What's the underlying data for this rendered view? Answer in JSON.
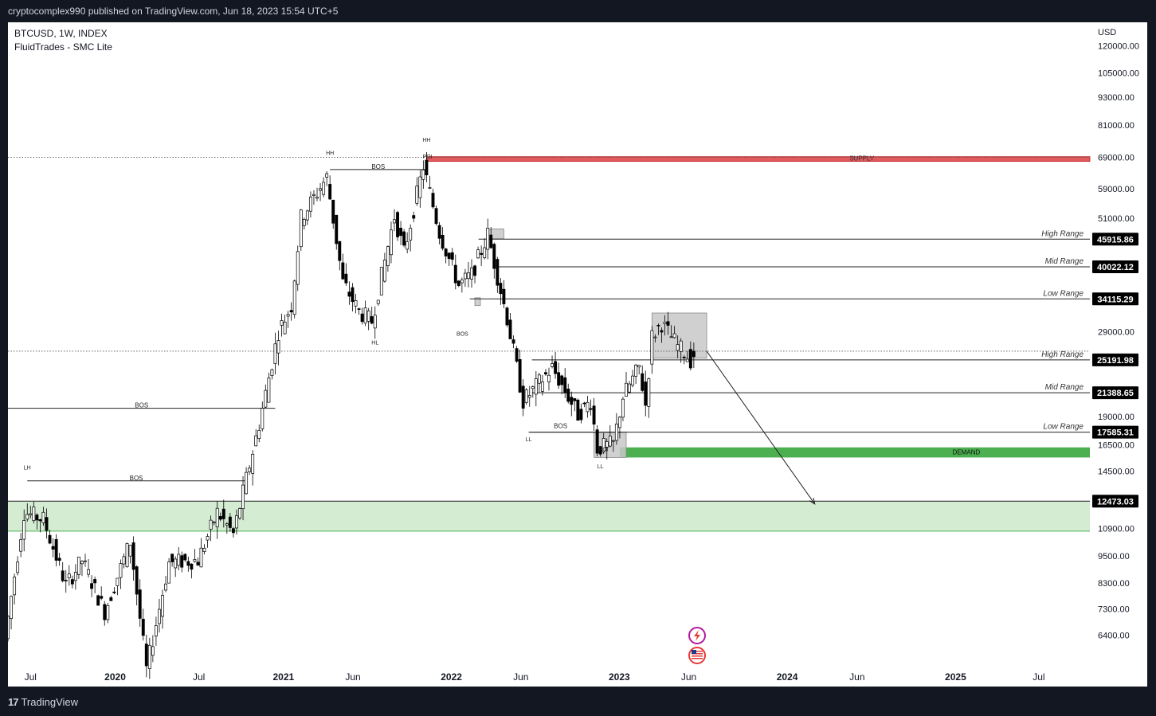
{
  "header": {
    "published_text": "cryptocomplex990 published on TradingView.com, Jun 18, 2023 15:54 UTC+5"
  },
  "legend": {
    "symbol": "BTCUSD, 1W, INDEX",
    "indicator": "FluidTrades - SMC Lite"
  },
  "footer": {
    "brand": "TradingView"
  },
  "colors": {
    "supply": "#e35a5e",
    "demand": "#4caf50",
    "range_zone": "#d4ecd2",
    "box_grey": "#c8c8c8"
  },
  "icons": [
    "lightning-icon",
    "us-flag-icon"
  ],
  "chart_data": {
    "type": "candlestick",
    "currency_label": "USD",
    "scale": "log",
    "ylim": [
      5500,
      135000
    ],
    "y_ticks": [
      120000,
      105000,
      93000,
      81000,
      69000,
      59000,
      51000,
      40022.12,
      34115.29,
      29000,
      25191.98,
      21388.65,
      19000,
      17585.31,
      16500,
      14500,
      12473.03,
      10900,
      9500,
      8300,
      7300,
      6400
    ],
    "y_tick_labels": [
      "120000.00",
      "105000.00",
      "93000.00",
      "81000.00",
      "69000.00",
      "59000.00",
      "51000.00",
      "",
      "",
      "29000.00",
      "",
      "",
      "19000.00",
      "",
      "16500.00",
      "14500.00",
      "",
      "10900.00",
      "9500.00",
      "8300.00",
      "7300.00",
      "6400.00"
    ],
    "x_tick_labels": [
      {
        "date": "2019-07-01",
        "label": "Jul",
        "bold": false
      },
      {
        "date": "2020-01-01",
        "label": "2020",
        "bold": true
      },
      {
        "date": "2020-07-01",
        "label": "Jul",
        "bold": false
      },
      {
        "date": "2021-01-01",
        "label": "2021",
        "bold": true
      },
      {
        "date": "2021-06-01",
        "label": "Jun",
        "bold": false
      },
      {
        "date": "2022-01-01",
        "label": "2022",
        "bold": true
      },
      {
        "date": "2022-06-01",
        "label": "Jun",
        "bold": false
      },
      {
        "date": "2023-01-01",
        "label": "2023",
        "bold": true
      },
      {
        "date": "2023-06-01",
        "label": "Jun",
        "bold": false
      },
      {
        "date": "2024-01-01",
        "label": "2024",
        "bold": true
      },
      {
        "date": "2024-06-01",
        "label": "Jun",
        "bold": false
      },
      {
        "date": "2025-01-01",
        "label": "2025",
        "bold": true
      },
      {
        "date": "2025-07-01",
        "label": "Jul",
        "bold": false
      }
    ],
    "xlim": [
      "2019-05-13",
      "2025-10-20"
    ],
    "price_tags": [
      {
        "value": 45915.86,
        "label": "45915.86",
        "range": "High Range"
      },
      {
        "value": 40022.12,
        "label": "40022.12",
        "range": "Mid Range"
      },
      {
        "value": 34115.29,
        "label": "34115.29",
        "range": "Low Range"
      },
      {
        "value": 25191.98,
        "label": "25191.98",
        "range": "High Range"
      },
      {
        "value": 21388.65,
        "label": "21388.65",
        "range": "Mid Range"
      },
      {
        "value": 17585.31,
        "label": "17585.31",
        "range": "Low Range"
      },
      {
        "value": 12473.03,
        "label": "12473.03",
        "range": ""
      }
    ],
    "range_lines": [
      {
        "value": 45915.86,
        "from": "2022-03-01"
      },
      {
        "value": 40022.12,
        "from": "2022-04-10"
      },
      {
        "value": 34115.29,
        "from": "2022-02-10"
      },
      {
        "value": 25191.98,
        "from": "2022-06-25"
      },
      {
        "value": 21388.65,
        "from": "2022-06-25"
      },
      {
        "value": 17585.31,
        "from": "2022-06-20"
      }
    ],
    "dotted_lines": [
      69000,
      26300
    ],
    "supply_zone": {
      "from": "2021-11-08",
      "top": 69200,
      "bottom": 67600,
      "label": "SUPPLY"
    },
    "demand_zone": {
      "from": "2023-01-02",
      "top": 16300,
      "bottom": 15500,
      "label": "DEMAND"
    },
    "range_zone": {
      "top": 12473.03,
      "bottom": 10750
    },
    "boxes": [
      {
        "from": "2022-03-21",
        "to": "2022-04-25",
        "top": 48300,
        "bottom": 46000
      },
      {
        "from": "2022-11-07",
        "to": "2023-01-16",
        "top": 17600,
        "bottom": 15500
      },
      {
        "from": "2023-03-13",
        "to": "2023-07-10",
        "top": 31800,
        "bottom": 25400
      },
      {
        "from": "2022-02-21",
        "to": "2022-03-05",
        "top": 34300,
        "bottom": 33000
      }
    ],
    "structure_lines": [
      {
        "from": "2019-06-24",
        "to": "2020-10-10",
        "value": 13800,
        "label": "BOS",
        "label_pos": "above"
      },
      {
        "from": "2019-05-13",
        "to": "2020-12-14",
        "value": 19800,
        "label": "BOS",
        "label_pos": "above"
      },
      {
        "from": "2021-04-12",
        "to": "2021-11-08",
        "value": 64900,
        "label": "BOS",
        "label_pos": "above"
      },
      {
        "from": "2022-06-18",
        "to": "2023-01-05",
        "value": 17585.31,
        "label": "BOS",
        "label_pos": "above_left"
      }
    ],
    "annotations": [
      {
        "date": "2019-06-24",
        "value": 14600,
        "text": "LH"
      },
      {
        "date": "2021-04-12",
        "value": 69800,
        "text": "HH"
      },
      {
        "date": "2021-11-08",
        "value": 74500,
        "text": "HH"
      },
      {
        "date": "2021-11-10",
        "value": 68600,
        "text": "POI"
      },
      {
        "date": "2021-07-19",
        "value": 27200,
        "text": "HL"
      },
      {
        "date": "2022-01-25",
        "value": 28400,
        "text": "BOS"
      },
      {
        "date": "2022-06-18",
        "value": 16800,
        "text": "LL"
      },
      {
        "date": "2022-11-21",
        "value": 14700,
        "text": "LL"
      },
      {
        "date": "2022-11-28",
        "value": 16000,
        "text": "POI"
      }
    ],
    "projection_arrow": {
      "from_date": "2023-07-10",
      "from_value": 26300,
      "to_date": "2024-03-01",
      "to_value": 12300
    },
    "anchors": [
      [
        "2019-05-13",
        6300
      ],
      [
        "2019-06-24",
        11800
      ],
      [
        "2019-08-05",
        11400
      ],
      [
        "2019-09-23",
        8200
      ],
      [
        "2019-10-28",
        9300
      ],
      [
        "2019-12-16",
        7200
      ],
      [
        "2020-02-10",
        10200
      ],
      [
        "2020-03-16",
        5400
      ],
      [
        "2020-05-04",
        9200
      ],
      [
        "2020-07-06",
        9300
      ],
      [
        "2020-08-17",
        11800
      ],
      [
        "2020-09-21",
        10600
      ],
      [
        "2020-11-16",
        18300
      ],
      [
        "2020-12-28",
        29000
      ],
      [
        "2021-01-25",
        33000
      ],
      [
        "2021-02-15",
        51000
      ],
      [
        "2021-04-12",
        62500
      ],
      [
        "2021-05-17",
        37000
      ],
      [
        "2021-06-21",
        32000
      ],
      [
        "2021-07-19",
        30500
      ],
      [
        "2021-09-06",
        51500
      ],
      [
        "2021-09-27",
        43000
      ],
      [
        "2021-11-08",
        66000
      ],
      [
        "2021-12-13",
        47500
      ],
      [
        "2022-01-24",
        36500
      ],
      [
        "2022-02-21",
        38500
      ],
      [
        "2022-03-28",
        47000
      ],
      [
        "2022-05-09",
        31000
      ],
      [
        "2022-06-13",
        20500
      ],
      [
        "2022-08-15",
        24200
      ],
      [
        "2022-10-10",
        19200
      ],
      [
        "2022-11-07",
        20500
      ],
      [
        "2022-11-21",
        16200
      ],
      [
        "2022-12-26",
        16600
      ],
      [
        "2023-01-16",
        21000
      ],
      [
        "2023-02-20",
        24300
      ],
      [
        "2023-03-06",
        20100
      ],
      [
        "2023-03-20",
        28300
      ],
      [
        "2023-04-10",
        30200
      ],
      [
        "2023-05-15",
        27000
      ],
      [
        "2023-06-12",
        25200
      ],
      [
        "2023-06-18",
        25900
      ]
    ]
  }
}
